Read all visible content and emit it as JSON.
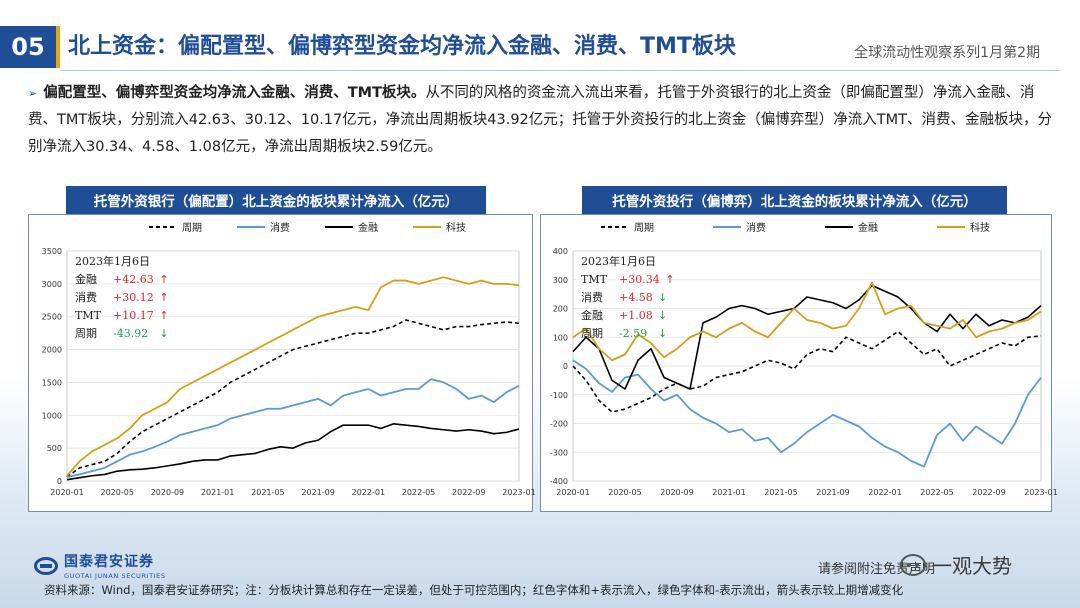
{
  "header": {
    "section_number": "05",
    "title": "北上资金：偏配置型、偏博弈型资金均净流入金融、消费、TMT板块",
    "series": "全球流动性观察系列1月第2期"
  },
  "summary": {
    "bullet": "➢",
    "lead": "偏配置型、偏博弈型资金均净流入金融、消费、TMT板块。",
    "body": "从不同的风格的资金流入流出来看，托管于外资银行的北上资金（即偏配置型）净流入金融、消费、TMT板块，分别流入42.63、30.12、10.17亿元，净流出周期板块43.92亿元；托管于外资投行的北上资金（偏博弈型）净流入TMT、消费、金融板块，分别净流入30.34、4.58、1.08亿元，净流出周期板块2.59亿元。"
  },
  "colors": {
    "brand": "#1f4e96",
    "accent": "#e8a317",
    "cycle": "#000000",
    "consumer": "#5b9bd5",
    "finance": "#000000",
    "tech": "#d4a017",
    "up": "#e0262b",
    "down": "#1aa34a"
  },
  "chart_data": [
    {
      "type": "line",
      "title": "托管外资银行（偏配置）北上资金的板块累计净流入（亿元）",
      "xticks": [
        "2020-01",
        "2020-05",
        "2020-09",
        "2021-01",
        "2021-05",
        "2021-09",
        "2022-01",
        "2022-05",
        "2022-09",
        "2023-01"
      ],
      "ylim": [
        0,
        3500
      ],
      "yticks": [
        0,
        500,
        1000,
        1500,
        2000,
        2500,
        3000,
        3500
      ],
      "legend_position": "top",
      "annotation": {
        "date": "2023年1月6日",
        "rows": [
          {
            "name": "金融",
            "value": "+42.63",
            "arrow": "↑",
            "dir": "up"
          },
          {
            "name": "消费",
            "value": "+30.12",
            "arrow": "↑",
            "dir": "up"
          },
          {
            "name": "TMT",
            "value": "+10.17",
            "arrow": "↑",
            "dir": "up"
          },
          {
            "name": "周期",
            "value": "-43.92",
            "arrow": "↓",
            "dir": "down"
          }
        ]
      },
      "series": [
        {
          "name": "周期",
          "style": "dashed",
          "color": "#000000",
          "x": [
            0,
            1,
            2,
            3,
            4,
            5,
            6,
            7,
            8,
            9,
            10,
            11,
            12,
            13,
            14,
            15,
            16,
            17,
            18,
            19,
            20,
            21,
            22,
            23,
            24,
            25,
            26,
            27,
            28,
            29,
            30,
            31,
            32,
            33,
            34,
            35,
            36
          ],
          "values": [
            60,
            200,
            250,
            300,
            420,
            600,
            750,
            850,
            950,
            1050,
            1150,
            1250,
            1350,
            1500,
            1600,
            1700,
            1800,
            1900,
            2000,
            2050,
            2100,
            2150,
            2200,
            2250,
            2250,
            2300,
            2350,
            2450,
            2400,
            2350,
            2300,
            2350,
            2350,
            2380,
            2400,
            2420,
            2400
          ]
        },
        {
          "name": "消费",
          "style": "solid",
          "color": "#5b9bd5",
          "x": [
            0,
            1,
            2,
            3,
            4,
            5,
            6,
            7,
            8,
            9,
            10,
            11,
            12,
            13,
            14,
            15,
            16,
            17,
            18,
            19,
            20,
            21,
            22,
            23,
            24,
            25,
            26,
            27,
            28,
            29,
            30,
            31,
            32,
            33,
            34,
            35,
            36
          ],
          "values": [
            60,
            100,
            150,
            200,
            300,
            400,
            450,
            520,
            600,
            700,
            750,
            800,
            850,
            950,
            1000,
            1050,
            1100,
            1100,
            1150,
            1200,
            1250,
            1150,
            1300,
            1350,
            1400,
            1300,
            1350,
            1400,
            1400,
            1550,
            1500,
            1400,
            1250,
            1300,
            1200,
            1350,
            1450
          ]
        },
        {
          "name": "金融",
          "style": "solid",
          "color": "#000000",
          "x": [
            0,
            1,
            2,
            3,
            4,
            5,
            6,
            7,
            8,
            9,
            10,
            11,
            12,
            13,
            14,
            15,
            16,
            17,
            18,
            19,
            20,
            21,
            22,
            23,
            24,
            25,
            26,
            27,
            28,
            29,
            30,
            31,
            32,
            33,
            34,
            35,
            36
          ],
          "values": [
            20,
            50,
            80,
            100,
            150,
            170,
            180,
            200,
            230,
            260,
            300,
            320,
            320,
            380,
            400,
            420,
            480,
            520,
            500,
            580,
            620,
            750,
            850,
            850,
            850,
            800,
            870,
            850,
            830,
            800,
            780,
            760,
            780,
            760,
            720,
            740,
            790
          ]
        },
        {
          "name": "科技",
          "style": "solid",
          "color": "#d4a017",
          "x": [
            0,
            1,
            2,
            3,
            4,
            5,
            6,
            7,
            8,
            9,
            10,
            11,
            12,
            13,
            14,
            15,
            16,
            17,
            18,
            19,
            20,
            21,
            22,
            23,
            24,
            25,
            26,
            27,
            28,
            29,
            30,
            31,
            32,
            33,
            34,
            35,
            36
          ],
          "values": [
            80,
            300,
            450,
            550,
            650,
            800,
            1000,
            1100,
            1200,
            1400,
            1500,
            1600,
            1700,
            1800,
            1900,
            2000,
            2100,
            2200,
            2300,
            2400,
            2500,
            2550,
            2600,
            2650,
            2600,
            2950,
            3050,
            3050,
            3000,
            3050,
            3100,
            3050,
            3000,
            3050,
            3000,
            3000,
            2980
          ]
        }
      ]
    },
    {
      "type": "line",
      "title": "托管外资投行（偏博弈）北上资金的板块累计净流入（亿元）",
      "xticks": [
        "2020-01",
        "2020-05",
        "2020-09",
        "2021-01",
        "2021-05",
        "2021-09",
        "2022-01",
        "2022-05",
        "2022-09",
        "2023-01"
      ],
      "ylim": [
        -400,
        400
      ],
      "yticks": [
        -400,
        -300,
        -200,
        -100,
        0,
        100,
        200,
        300,
        400
      ],
      "legend_position": "top",
      "annotation": {
        "date": "2023年1月6日",
        "rows": [
          {
            "name": "TMT",
            "value": "+30.34",
            "arrow": "↑",
            "dir": "up"
          },
          {
            "name": "消费",
            "value": "+4.58",
            "arrow": "↓",
            "dir": "up"
          },
          {
            "name": "金融",
            "value": "+1.08",
            "arrow": "↓",
            "dir": "up"
          },
          {
            "name": "周期",
            "value": "-2.59",
            "arrow": "↓",
            "dir": "down"
          }
        ]
      },
      "series": [
        {
          "name": "周期",
          "style": "dashed",
          "color": "#000000",
          "x": [
            0,
            1,
            2,
            3,
            4,
            5,
            6,
            7,
            8,
            9,
            10,
            11,
            12,
            13,
            14,
            15,
            16,
            17,
            18,
            19,
            20,
            21,
            22,
            23,
            24,
            25,
            26,
            27,
            28,
            29,
            30,
            31,
            32,
            33,
            34,
            35,
            36
          ],
          "values": [
            0,
            -50,
            -120,
            -160,
            -150,
            -130,
            -110,
            -80,
            -60,
            -80,
            -70,
            -40,
            -30,
            -20,
            0,
            20,
            10,
            -10,
            40,
            60,
            50,
            100,
            80,
            60,
            90,
            120,
            80,
            40,
            60,
            0,
            20,
            40,
            60,
            80,
            70,
            100,
            105
          ]
        },
        {
          "name": "消费",
          "style": "solid",
          "color": "#5b9bd5",
          "x": [
            0,
            1,
            2,
            3,
            4,
            5,
            6,
            7,
            8,
            9,
            10,
            11,
            12,
            13,
            14,
            15,
            16,
            17,
            18,
            19,
            20,
            21,
            22,
            23,
            24,
            25,
            26,
            27,
            28,
            29,
            30,
            31,
            32,
            33,
            34,
            35,
            36
          ],
          "values": [
            20,
            -10,
            -60,
            -90,
            -40,
            -30,
            -80,
            -120,
            -100,
            -150,
            -180,
            -200,
            -230,
            -220,
            -260,
            -250,
            -300,
            -270,
            -230,
            -200,
            -170,
            -190,
            -210,
            -250,
            -280,
            -300,
            -330,
            -350,
            -240,
            -200,
            -260,
            -210,
            -240,
            -270,
            -200,
            -100,
            -40
          ]
        },
        {
          "name": "金融",
          "style": "solid",
          "color": "#000000",
          "x": [
            0,
            1,
            2,
            3,
            4,
            5,
            6,
            7,
            8,
            9,
            10,
            11,
            12,
            13,
            14,
            15,
            16,
            17,
            18,
            19,
            20,
            21,
            22,
            23,
            24,
            25,
            26,
            27,
            28,
            29,
            30,
            31,
            32,
            33,
            34,
            35,
            36
          ],
          "values": [
            50,
            100,
            60,
            -50,
            -80,
            20,
            60,
            -40,
            -60,
            -80,
            150,
            170,
            200,
            210,
            200,
            180,
            190,
            200,
            240,
            230,
            220,
            200,
            230,
            280,
            260,
            240,
            200,
            150,
            120,
            180,
            130,
            180,
            140,
            160,
            150,
            170,
            210
          ]
        },
        {
          "name": "科技",
          "style": "solid",
          "color": "#d4a017",
          "x": [
            0,
            1,
            2,
            3,
            4,
            5,
            6,
            7,
            8,
            9,
            10,
            11,
            12,
            13,
            14,
            15,
            16,
            17,
            18,
            19,
            20,
            21,
            22,
            23,
            24,
            25,
            26,
            27,
            28,
            29,
            30,
            31,
            32,
            33,
            34,
            35,
            36
          ],
          "values": [
            100,
            130,
            60,
            20,
            40,
            110,
            80,
            30,
            60,
            100,
            120,
            100,
            130,
            150,
            120,
            100,
            150,
            200,
            160,
            150,
            130,
            140,
            200,
            290,
            180,
            200,
            210,
            150,
            140,
            130,
            160,
            100,
            120,
            130,
            150,
            160,
            190
          ]
        }
      ]
    }
  ],
  "footer": {
    "logo_cn": "国泰君安证券",
    "logo_en": "GUOTAI JUNAN SECURITIES",
    "disclaimer": "请参阅附注免责声明",
    "watermark": "一观大势",
    "source": "资料来源：Wind，国泰君安证券研究；注：分板块计算总和存在一定误差，但处于可控范围内；红色字体和+表示流入，绿色字体和-表示流出，箭头表示较上期增减变化"
  }
}
